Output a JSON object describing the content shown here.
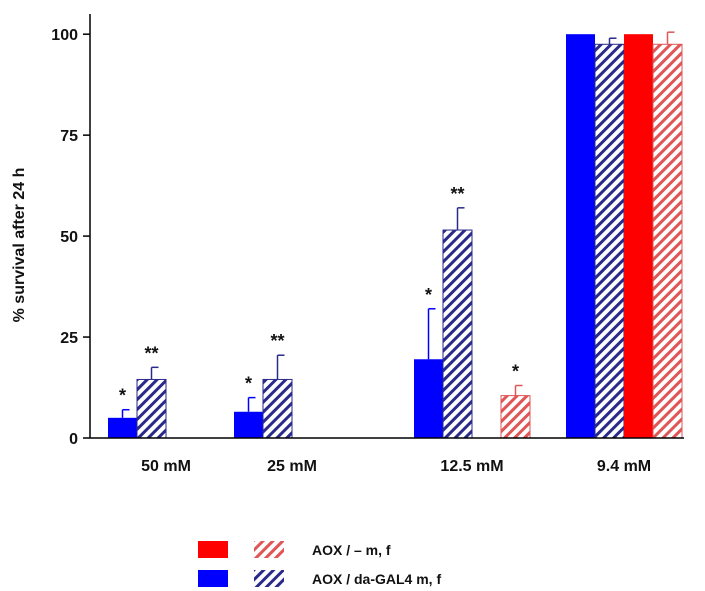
{
  "chart_data": {
    "type": "bar",
    "ylabel": "% survival after 24 h",
    "xlabel": "",
    "title": "",
    "ylim": [
      0,
      105
    ],
    "yticks": [
      0,
      25,
      50,
      75,
      100
    ],
    "categories": [
      "50 mM",
      "25 mM",
      "12.5 mM",
      "9.4 mM"
    ],
    "series": [
      {
        "name": "AOX / da-GAL4 m, f",
        "fill": "solid",
        "color": "#0000ff",
        "values": [
          5,
          6.5,
          19.5,
          100
        ],
        "errors": [
          2,
          3.5,
          12.5,
          0
        ],
        "annotations": [
          "*",
          "*",
          "*",
          ""
        ]
      },
      {
        "name": "AOX / da-GAL4 m, f",
        "fill": "hatched",
        "color": "#2a2a8a",
        "values": [
          14.5,
          14.5,
          51.5,
          97.5
        ],
        "errors": [
          3,
          6,
          5.5,
          1.5
        ],
        "annotations": [
          "**",
          "**",
          "**",
          ""
        ]
      },
      {
        "name": "AOX / –  m, f",
        "fill": "solid",
        "color": "#ff0000",
        "values": [
          null,
          null,
          null,
          100
        ],
        "errors": [
          null,
          null,
          null,
          0
        ],
        "annotations": [
          "",
          "",
          "",
          ""
        ]
      },
      {
        "name": "AOX / –  m, f",
        "fill": "hatched",
        "color": "#e05555",
        "values": [
          null,
          null,
          10.5,
          97.5
        ],
        "errors": [
          null,
          null,
          2.5,
          3
        ],
        "annotations": [
          "",
          "",
          "*",
          ""
        ]
      }
    ],
    "legend": {
      "position": "bottom-center",
      "rows": [
        {
          "label": "AOX / –  m, f",
          "swatches": [
            "#ff0000",
            "hatch-red"
          ]
        },
        {
          "label": "AOX / da-GAL4  m, f",
          "swatches": [
            "#0000ff",
            "hatch-blue"
          ]
        }
      ]
    }
  }
}
